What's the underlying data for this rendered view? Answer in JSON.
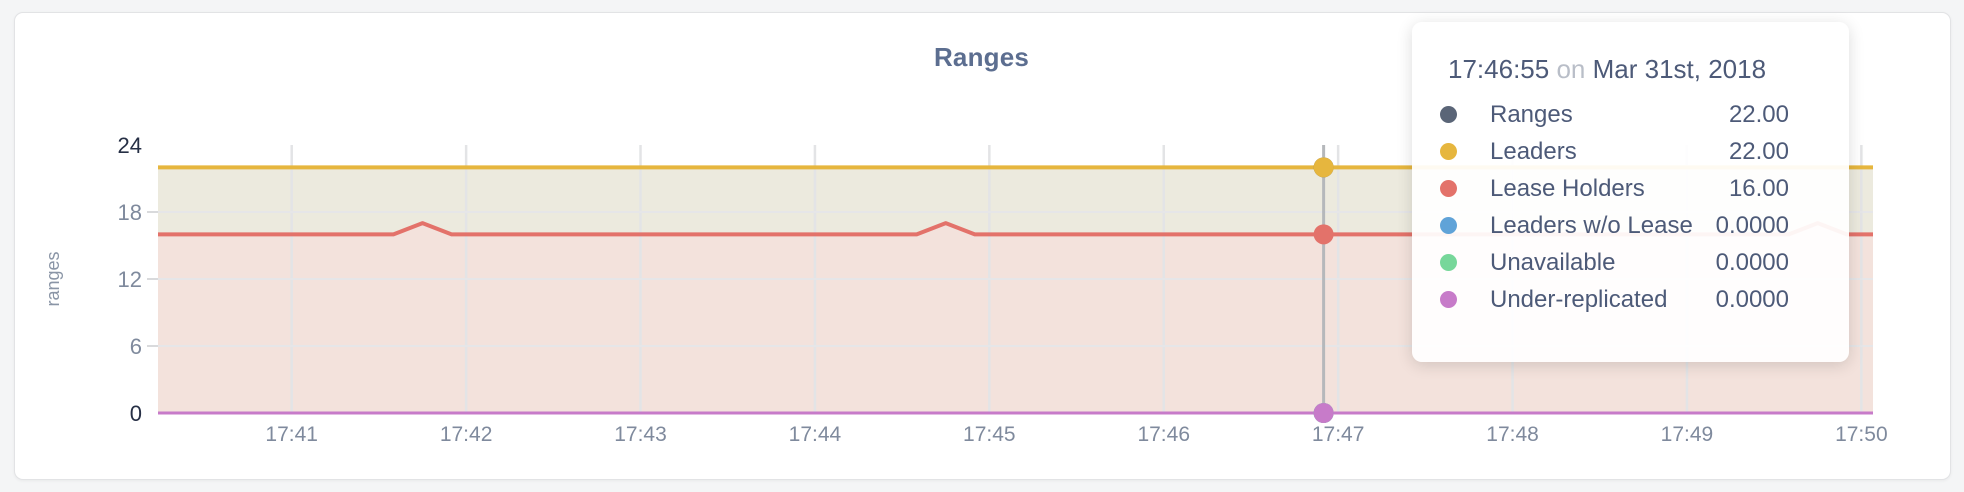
{
  "page": {
    "background": "#f4f5f6"
  },
  "card": {
    "background": "#ffffff",
    "border_color": "#e2e3e5"
  },
  "chart_data": {
    "type": "area",
    "title": "Ranges",
    "ylabel": "ranges",
    "xlabel": "",
    "ylim": [
      0,
      24
    ],
    "yticks": [
      0,
      6,
      12,
      18,
      24
    ],
    "x_start": "17:40:14",
    "x_end": "17:50:04",
    "xticks": [
      "17:41",
      "17:42",
      "17:43",
      "17:44",
      "17:45",
      "17:46",
      "17:47",
      "17:48",
      "17:49",
      "17:50"
    ],
    "grid": true,
    "legend_position": "tooltip",
    "hover_time": "17:46:55",
    "series": [
      {
        "name": "Ranges",
        "color": "#5a6577",
        "fill": null,
        "points": [
          [
            "17:40:14",
            22
          ],
          [
            "17:50:04",
            22
          ]
        ]
      },
      {
        "name": "Leaders",
        "color": "#e6b63e",
        "fill": "#eceade",
        "points": [
          [
            "17:40:14",
            22
          ],
          [
            "17:50:04",
            22
          ]
        ]
      },
      {
        "name": "Lease Holders",
        "color": "#e3726a",
        "fill": "#f3e2dc",
        "points": [
          [
            "17:40:14",
            16
          ],
          [
            "17:41:35",
            16
          ],
          [
            "17:41:45",
            17
          ],
          [
            "17:41:55",
            16
          ],
          [
            "17:44:35",
            16
          ],
          [
            "17:44:45",
            17
          ],
          [
            "17:44:55",
            16
          ],
          [
            "17:49:35",
            16
          ],
          [
            "17:49:45",
            17
          ],
          [
            "17:49:55",
            16
          ],
          [
            "17:50:04",
            16
          ]
        ]
      },
      {
        "name": "Leaders w/o Lease",
        "color": "#60a3d8",
        "fill": null,
        "points": [
          [
            "17:40:14",
            0
          ],
          [
            "17:50:04",
            0
          ]
        ]
      },
      {
        "name": "Unavailable",
        "color": "#77d79a",
        "fill": null,
        "points": [
          [
            "17:40:14",
            0
          ],
          [
            "17:50:04",
            0
          ]
        ]
      },
      {
        "name": "Under-replicated",
        "color": "#c77bc9",
        "fill": null,
        "points": [
          [
            "17:40:14",
            0
          ],
          [
            "17:50:04",
            0
          ]
        ]
      }
    ]
  },
  "tooltip": {
    "time": "17:46:55",
    "on_word": "on",
    "date": "Mar 31st, 2018",
    "rows": [
      {
        "label": "Ranges",
        "value": "22.00",
        "color": "#5a6577"
      },
      {
        "label": "Leaders",
        "value": "22.00",
        "color": "#e6b63e"
      },
      {
        "label": "Lease Holders",
        "value": "16.00",
        "color": "#e3726a"
      },
      {
        "label": "Leaders w/o Lease",
        "value": "0.0000",
        "color": "#60a3d8"
      },
      {
        "label": "Unavailable",
        "value": "0.0000",
        "color": "#77d79a"
      },
      {
        "label": "Under-replicated",
        "value": "0.0000",
        "color": "#c77bc9"
      }
    ]
  }
}
